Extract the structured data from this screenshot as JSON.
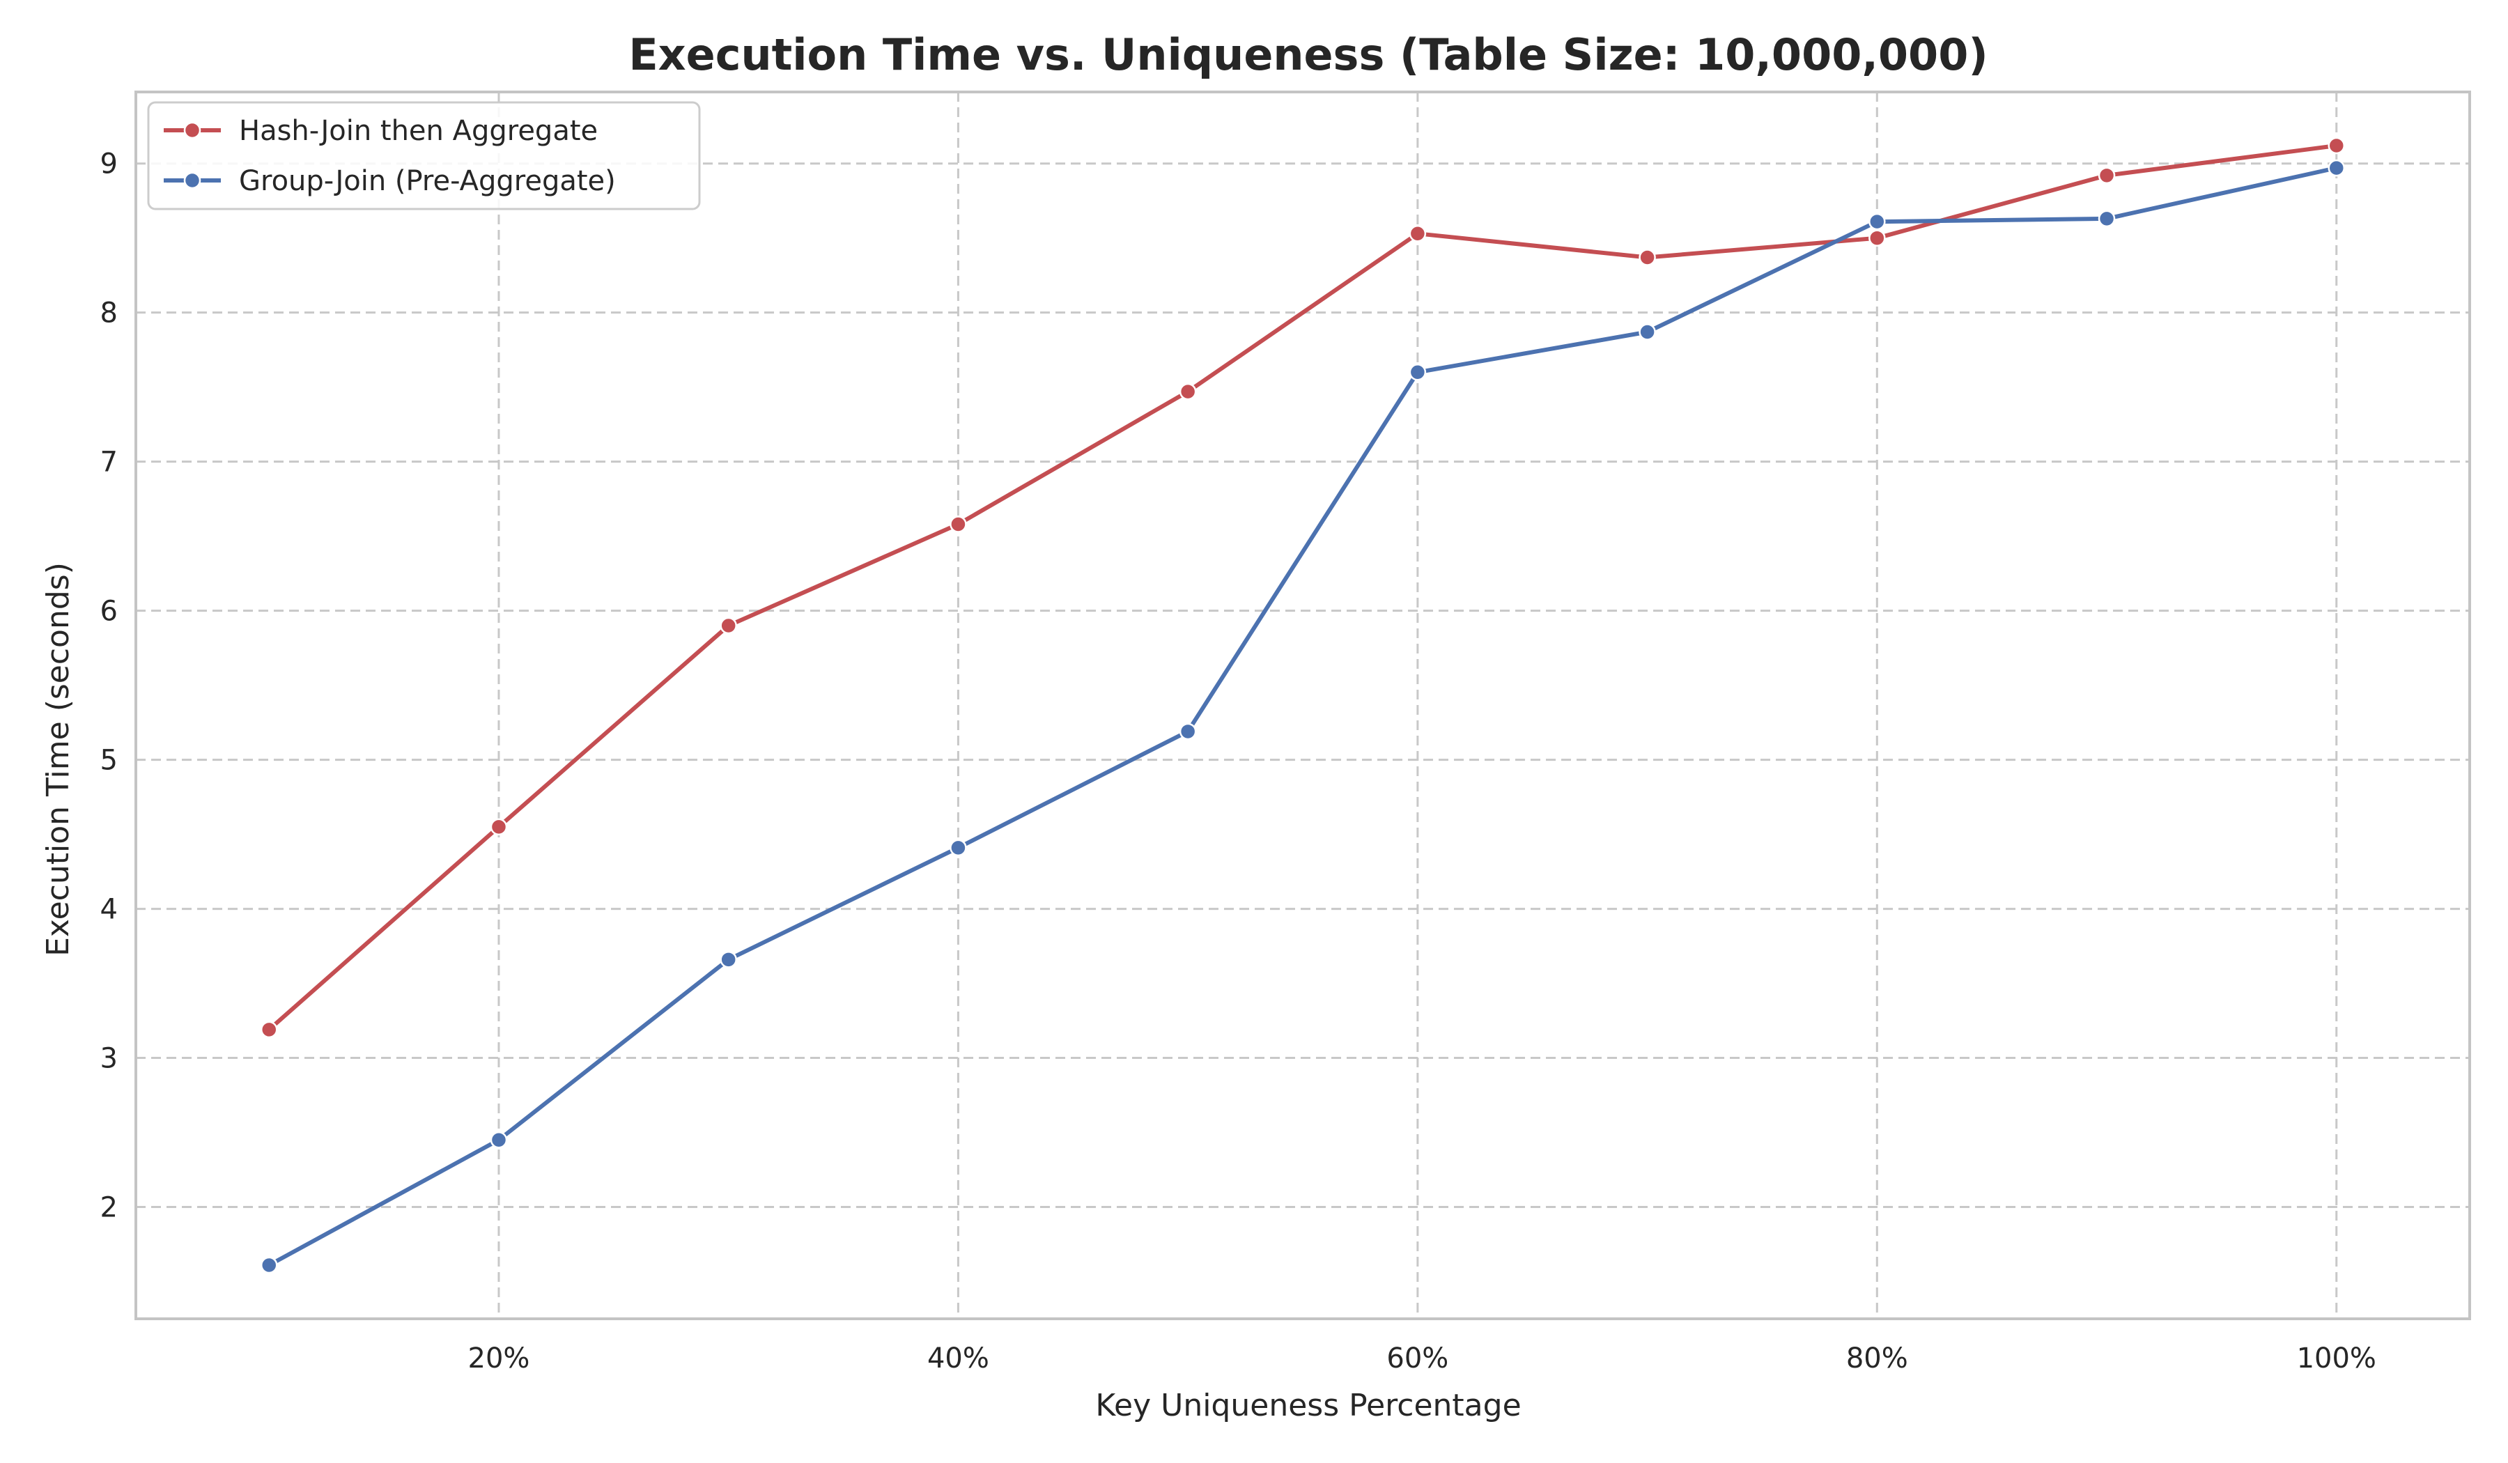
{
  "chart_data": {
    "type": "line",
    "title": "Execution Time vs. Uniqueness (Table Size: 10,000,000)",
    "xlabel": "Key Uniqueness Percentage",
    "ylabel": "Execution Time (seconds)",
    "x": [
      10,
      20,
      30,
      40,
      50,
      60,
      70,
      80,
      90,
      100
    ],
    "xlim": [
      4.2,
      105.8
    ],
    "ylim": [
      1.25,
      9.48
    ],
    "xticks": [
      20,
      40,
      60,
      80,
      100
    ],
    "xtick_labels": [
      "20%",
      "40%",
      "60%",
      "80%",
      "100%"
    ],
    "yticks": [
      2,
      3,
      4,
      5,
      6,
      7,
      8,
      9
    ],
    "ytick_labels": [
      "2",
      "3",
      "4",
      "5",
      "6",
      "7",
      "8",
      "9"
    ],
    "grid": true,
    "legend_position": "top-left",
    "series": [
      {
        "name": "Hash-Join then Aggregate",
        "color": "#c44e52",
        "values": [
          3.19,
          4.55,
          5.9,
          6.58,
          7.47,
          8.53,
          8.37,
          8.5,
          8.92,
          9.12
        ]
      },
      {
        "name": "Group-Join (Pre-Aggregate)",
        "color": "#4c72b0",
        "values": [
          1.61,
          2.45,
          3.66,
          4.41,
          5.19,
          7.6,
          7.87,
          8.61,
          8.63,
          8.97
        ]
      }
    ]
  }
}
